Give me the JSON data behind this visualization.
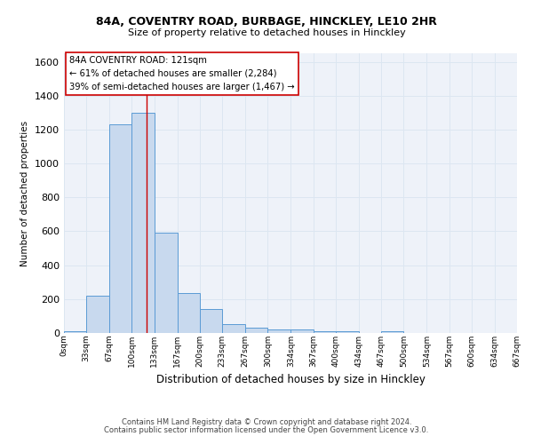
{
  "title1": "84A, COVENTRY ROAD, BURBAGE, HINCKLEY, LE10 2HR",
  "title2": "Size of property relative to detached houses in Hinckley",
  "xlabel": "Distribution of detached houses by size in Hinckley",
  "ylabel": "Number of detached properties",
  "bin_labels": [
    "0sqm",
    "33sqm",
    "67sqm",
    "100sqm",
    "133sqm",
    "167sqm",
    "200sqm",
    "233sqm",
    "267sqm",
    "300sqm",
    "334sqm",
    "367sqm",
    "400sqm",
    "434sqm",
    "467sqm",
    "500sqm",
    "534sqm",
    "567sqm",
    "600sqm",
    "634sqm",
    "667sqm"
  ],
  "bin_edges": [
    0,
    33,
    67,
    100,
    133,
    167,
    200,
    233,
    267,
    300,
    334,
    367,
    400,
    434,
    467,
    500,
    534,
    567,
    600,
    634,
    667
  ],
  "bar_heights": [
    10,
    220,
    1230,
    1300,
    590,
    235,
    140,
    50,
    30,
    22,
    20,
    10,
    10,
    0,
    10,
    0,
    0,
    0,
    0,
    0
  ],
  "bar_color": "#c8d9ee",
  "bar_edge_color": "#5b9bd5",
  "grid_color": "#dce6f1",
  "background_color": "#eef2f9",
  "vline_x": 121,
  "vline_color": "#cc0000",
  "annotation_text": "84A COVENTRY ROAD: 121sqm\n← 61% of detached houses are smaller (2,284)\n39% of semi-detached houses are larger (1,467) →",
  "annotation_box_color": "#ffffff",
  "annotation_box_edge": "#cc0000",
  "ylim": [
    0,
    1650
  ],
  "yticks": [
    0,
    200,
    400,
    600,
    800,
    1000,
    1200,
    1400,
    1600
  ],
  "footer1": "Contains HM Land Registry data © Crown copyright and database right 2024.",
  "footer2": "Contains public sector information licensed under the Open Government Licence v3.0."
}
